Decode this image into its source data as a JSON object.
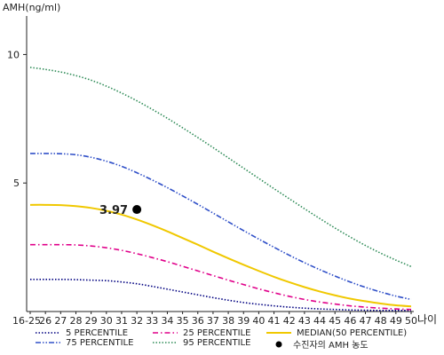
{
  "chart_data": {
    "type": "line",
    "title": "",
    "ylabel": "AMH(ng/ml)",
    "xlabel": "나이",
    "ylim": [
      0,
      11.5
    ],
    "yticks": [
      5,
      10
    ],
    "grid": false,
    "legend_position": "bottom",
    "categories": [
      "16-25",
      "26",
      "27",
      "28",
      "29",
      "30",
      "31",
      "32",
      "33",
      "34",
      "35",
      "36",
      "37",
      "38",
      "39",
      "40",
      "41",
      "42",
      "43",
      "44",
      "45",
      "46",
      "47",
      "48",
      "49",
      "50"
    ],
    "series": [
      {
        "name": "5 PERCENTILE",
        "color": "#000080",
        "style": "dotted",
        "values": [
          1.25,
          1.25,
          1.25,
          1.24,
          1.22,
          1.2,
          1.15,
          1.08,
          0.98,
          0.87,
          0.76,
          0.65,
          0.54,
          0.44,
          0.35,
          0.28,
          0.22,
          0.17,
          0.13,
          0.1,
          0.08,
          0.06,
          0.05,
          0.04,
          0.04,
          0.04
        ]
      },
      {
        "name": "25 PERCENTILE",
        "color": "#e0008a",
        "style": "dashdot",
        "values": [
          2.6,
          2.6,
          2.6,
          2.59,
          2.55,
          2.48,
          2.38,
          2.25,
          2.1,
          1.94,
          1.76,
          1.58,
          1.4,
          1.22,
          1.05,
          0.88,
          0.73,
          0.59,
          0.47,
          0.37,
          0.29,
          0.22,
          0.17,
          0.13,
          0.1,
          0.08
        ]
      },
      {
        "name": "MEDIAN(50 PERCENTILE)",
        "color": "#f0c800",
        "style": "solid",
        "values": [
          4.15,
          4.15,
          4.14,
          4.1,
          4.03,
          3.92,
          3.77,
          3.58,
          3.36,
          3.12,
          2.86,
          2.6,
          2.33,
          2.07,
          1.82,
          1.58,
          1.35,
          1.14,
          0.95,
          0.78,
          0.63,
          0.5,
          0.4,
          0.31,
          0.24,
          0.2
        ]
      },
      {
        "name": "75 PERCENTILE",
        "color": "#3050c8",
        "style": "dashdotdot",
        "values": [
          6.15,
          6.15,
          6.14,
          6.1,
          6.0,
          5.85,
          5.65,
          5.4,
          5.12,
          4.82,
          4.5,
          4.17,
          3.83,
          3.49,
          3.15,
          2.82,
          2.5,
          2.19,
          1.9,
          1.63,
          1.38,
          1.15,
          0.94,
          0.76,
          0.6,
          0.47
        ]
      },
      {
        "name": "95 PERCENTILE",
        "color": "#2e8b57",
        "style": "dotted",
        "values": [
          9.5,
          9.42,
          9.32,
          9.18,
          9.0,
          8.77,
          8.5,
          8.2,
          7.87,
          7.52,
          7.15,
          6.77,
          6.38,
          5.98,
          5.58,
          5.18,
          4.78,
          4.39,
          4.0,
          3.62,
          3.25,
          2.9,
          2.57,
          2.27,
          2.0,
          1.75
        ]
      }
    ],
    "point": {
      "name": "수진자의 AMH 농도",
      "x": "32",
      "y": 3.97,
      "label": "3.97",
      "color": "#000000"
    }
  }
}
